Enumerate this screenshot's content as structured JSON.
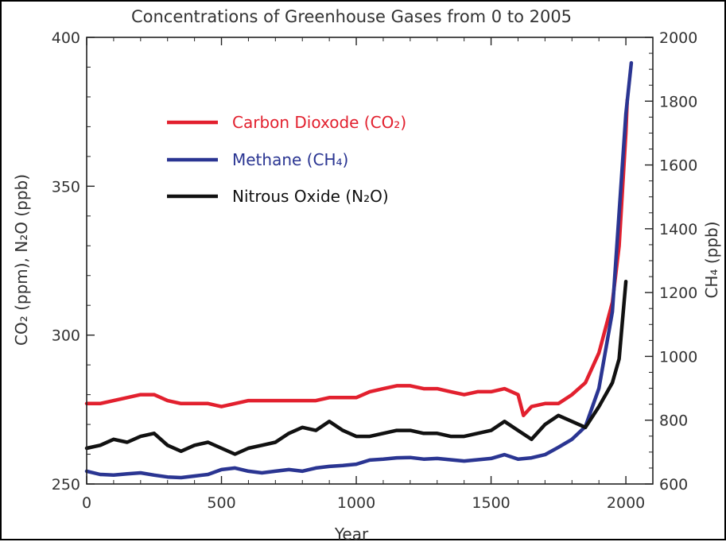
{
  "chart_data": {
    "type": "line",
    "title": "Concentrations of Greenhouse Gases from 0 to 2005",
    "xlabel": "Year",
    "ylabel_left": "CO₂ (ppm), N₂O (ppb)",
    "ylabel_right": "CH₄ (ppb)",
    "xlim": [
      0,
      2100
    ],
    "ylim_left": [
      250,
      400
    ],
    "ylim_right": [
      600,
      2000
    ],
    "x_ticks": [
      "0",
      "500",
      "1000",
      "1500",
      "2000"
    ],
    "y_ticks_left": [
      "250",
      "300",
      "350",
      "400"
    ],
    "y_ticks_right": [
      "600",
      "800",
      "1000",
      "1200",
      "1400",
      "1600",
      "1800",
      "2000"
    ],
    "legend_position": "upper-left",
    "series": [
      {
        "name": "Carbon Dioxode (CO₂)",
        "axis": "left",
        "color": "#e2202e",
        "points": [
          [
            0,
            277
          ],
          [
            50,
            277
          ],
          [
            100,
            278
          ],
          [
            150,
            279
          ],
          [
            200,
            280
          ],
          [
            250,
            280
          ],
          [
            300,
            278
          ],
          [
            350,
            277
          ],
          [
            400,
            277
          ],
          [
            450,
            277
          ],
          [
            500,
            276
          ],
          [
            550,
            277
          ],
          [
            600,
            278
          ],
          [
            650,
            278
          ],
          [
            700,
            278
          ],
          [
            750,
            278
          ],
          [
            800,
            278
          ],
          [
            850,
            278
          ],
          [
            900,
            279
          ],
          [
            950,
            279
          ],
          [
            1000,
            279
          ],
          [
            1050,
            281
          ],
          [
            1100,
            282
          ],
          [
            1150,
            283
          ],
          [
            1200,
            283
          ],
          [
            1250,
            282
          ],
          [
            1300,
            282
          ],
          [
            1350,
            281
          ],
          [
            1400,
            280
          ],
          [
            1450,
            281
          ],
          [
            1500,
            281
          ],
          [
            1550,
            282
          ],
          [
            1600,
            280
          ],
          [
            1620,
            273
          ],
          [
            1650,
            276
          ],
          [
            1700,
            277
          ],
          [
            1750,
            277
          ],
          [
            1800,
            280
          ],
          [
            1850,
            284
          ],
          [
            1900,
            294
          ],
          [
            1950,
            311
          ],
          [
            1975,
            330
          ],
          [
            2000,
            368
          ],
          [
            2005,
            379
          ]
        ]
      },
      {
        "name": "Methane (CH₄)",
        "axis": "right",
        "color": "#2a3592",
        "points": [
          [
            0,
            640
          ],
          [
            50,
            630
          ],
          [
            100,
            628
          ],
          [
            150,
            632
          ],
          [
            200,
            635
          ],
          [
            250,
            628
          ],
          [
            300,
            622
          ],
          [
            350,
            620
          ],
          [
            400,
            625
          ],
          [
            450,
            630
          ],
          [
            500,
            645
          ],
          [
            550,
            650
          ],
          [
            600,
            640
          ],
          [
            650,
            635
          ],
          [
            700,
            640
          ],
          [
            750,
            645
          ],
          [
            800,
            640
          ],
          [
            850,
            650
          ],
          [
            900,
            655
          ],
          [
            950,
            658
          ],
          [
            1000,
            662
          ],
          [
            1050,
            675
          ],
          [
            1100,
            678
          ],
          [
            1150,
            682
          ],
          [
            1200,
            683
          ],
          [
            1250,
            678
          ],
          [
            1300,
            680
          ],
          [
            1350,
            676
          ],
          [
            1400,
            672
          ],
          [
            1450,
            676
          ],
          [
            1500,
            680
          ],
          [
            1550,
            692
          ],
          [
            1600,
            678
          ],
          [
            1650,
            682
          ],
          [
            1700,
            692
          ],
          [
            1750,
            715
          ],
          [
            1800,
            740
          ],
          [
            1850,
            780
          ],
          [
            1900,
            900
          ],
          [
            1950,
            1140
          ],
          [
            1975,
            1450
          ],
          [
            2000,
            1760
          ],
          [
            2020,
            1920
          ]
        ]
      },
      {
        "name": "Nitrous Oxide (N₂O)",
        "axis": "left",
        "color": "#111111",
        "points": [
          [
            0,
            262
          ],
          [
            50,
            263
          ],
          [
            100,
            265
          ],
          [
            150,
            264
          ],
          [
            200,
            266
          ],
          [
            250,
            267
          ],
          [
            300,
            263
          ],
          [
            350,
            261
          ],
          [
            400,
            263
          ],
          [
            450,
            264
          ],
          [
            500,
            262
          ],
          [
            550,
            260
          ],
          [
            600,
            262
          ],
          [
            650,
            263
          ],
          [
            700,
            264
          ],
          [
            750,
            267
          ],
          [
            800,
            269
          ],
          [
            850,
            268
          ],
          [
            900,
            271
          ],
          [
            950,
            268
          ],
          [
            1000,
            266
          ],
          [
            1050,
            266
          ],
          [
            1100,
            267
          ],
          [
            1150,
            268
          ],
          [
            1200,
            268
          ],
          [
            1250,
            267
          ],
          [
            1300,
            267
          ],
          [
            1350,
            266
          ],
          [
            1400,
            266
          ],
          [
            1450,
            267
          ],
          [
            1500,
            268
          ],
          [
            1550,
            271
          ],
          [
            1600,
            268
          ],
          [
            1650,
            265
          ],
          [
            1700,
            270
          ],
          [
            1750,
            273
          ],
          [
            1800,
            271
          ],
          [
            1850,
            269
          ],
          [
            1900,
            276
          ],
          [
            1950,
            284
          ],
          [
            1975,
            292
          ],
          [
            2000,
            318
          ]
        ]
      }
    ]
  }
}
